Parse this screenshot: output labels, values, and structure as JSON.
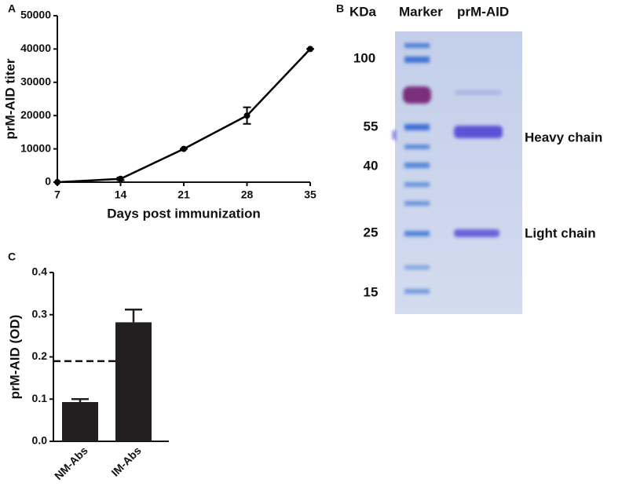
{
  "chart_data": [
    {
      "type": "line",
      "panel_label": "A",
      "y_label": "prM-AID titer",
      "x_label": "Days post immunization",
      "x": [
        7,
        14,
        21,
        28,
        35
      ],
      "values": [
        0,
        1000,
        10000,
        20000,
        40000
      ],
      "errors": [
        0,
        400,
        0,
        2500,
        0
      ],
      "color": "#000000",
      "xlim": [
        7,
        35
      ],
      "xticks": [
        7,
        14,
        21,
        28,
        35
      ],
      "ylim": [
        0,
        50000
      ],
      "yticks": [
        0,
        10000,
        20000,
        30000,
        40000,
        50000
      ]
    },
    {
      "type": "bar",
      "panel_label": "C",
      "y_label": "prM-AID (OD)",
      "categories": [
        "NM-Abs",
        "IM-Abs"
      ],
      "values": [
        0.093,
        0.282
      ],
      "errors": [
        0.007,
        0.03
      ],
      "color": "#231f20",
      "cutoff": 0.19,
      "ylim": [
        0,
        0.4
      ],
      "yticks": [
        {
          "value": 0,
          "label": "0.0"
        },
        0.1,
        0.2,
        0.3,
        0.4
      ]
    }
  ],
  "gel": {
    "panel_label": "B",
    "headers": [
      "KDa",
      "Marker",
      "prM-AID"
    ],
    "markers": [
      "100",
      "55",
      "40",
      "25",
      "15"
    ],
    "bands": [
      "Heavy chain",
      "Light chain"
    ]
  }
}
